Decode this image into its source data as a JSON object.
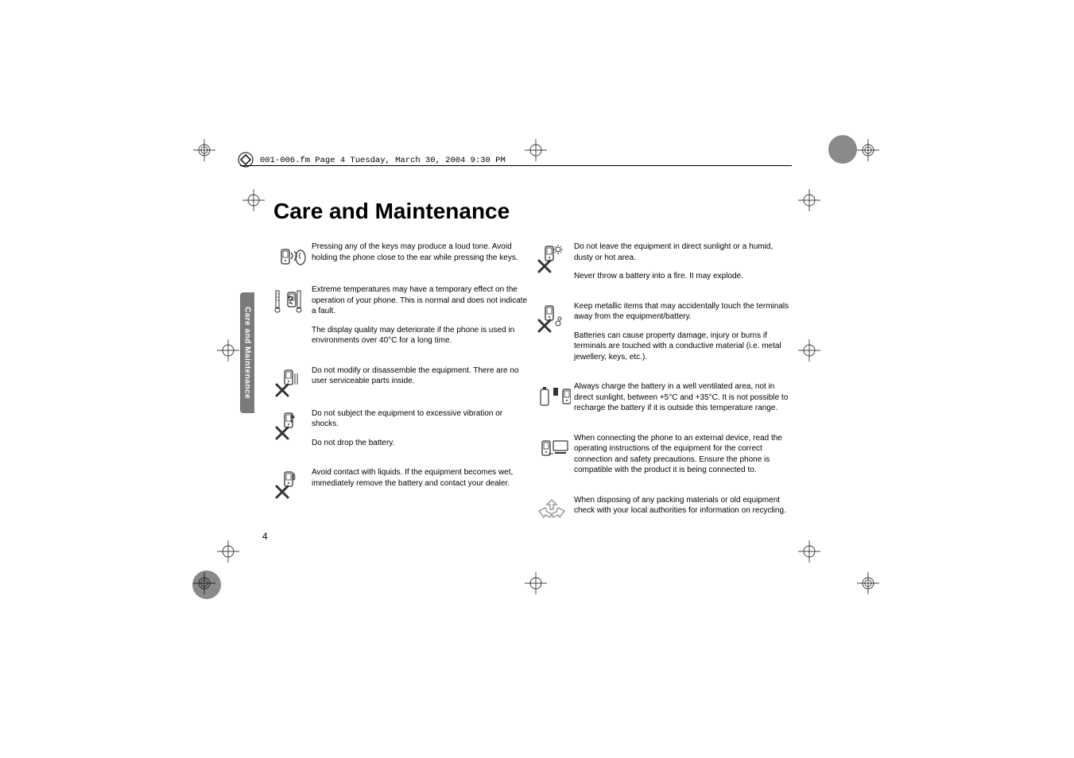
{
  "header": {
    "running_line": "001-006.fm  Page 4  Tuesday, March 30, 2004  9:30 PM"
  },
  "title": "Care and Maintenance",
  "sidebar_tab": "Care and Maintenance",
  "page_number": "4",
  "left_column": [
    {
      "icon": "phone-ear-sound",
      "paragraphs": [
        "Pressing any of the keys may produce a loud tone. Avoid holding the phone close to the ear while pressing the keys."
      ]
    },
    {
      "icon": "thermometer-question",
      "paragraphs": [
        "Extreme temperatures may have a temporary effect on the operation of your phone. This is normal and does not indicate a fault.",
        "The display quality may deteriorate if the phone is used in environments over 40°C for a long time."
      ]
    },
    {
      "icon": "phone-x-disassemble",
      "paragraphs": [
        "Do not modify or disassemble the equipment. There are no user serviceable parts inside."
      ]
    },
    {
      "icon": "phone-x-shock",
      "paragraphs": [
        "Do not subject the equipment to excessive vibration or shocks.",
        "Do not drop the battery."
      ]
    },
    {
      "icon": "phone-x-liquid",
      "paragraphs": [
        "Avoid contact with liquids. If the equipment becomes wet, immediately remove the battery and contact your dealer."
      ]
    }
  ],
  "right_column": [
    {
      "icon": "phone-x-sun",
      "paragraphs": [
        "Do not leave the equipment in direct sunlight or a humid, dusty or hot area.",
        "Never throw a battery into a fire. It may explode."
      ]
    },
    {
      "icon": "phone-x-metal",
      "paragraphs": [
        "Keep metallic items that may accidentally touch the terminals away from the equipment/battery.",
        "Batteries can cause property damage, injury or burns if terminals are touched with a conductive material (i.e. metal jewellery, keys, etc.)."
      ]
    },
    {
      "icon": "battery-charge-vent",
      "paragraphs": [
        "Always charge the battery in a well ventilated area, not in direct sunlight, between +5°C and +35°C. It is not possible to recharge the battery if it is outside this temperature range."
      ]
    },
    {
      "icon": "phone-external-device",
      "paragraphs": [
        "When connecting the phone to an external device, read the operating instructions of the equipment for the correct connection and safety precautions. Ensure the phone is compatible with the product it is being connected to."
      ]
    },
    {
      "icon": "recycle",
      "paragraphs": [
        "When disposing of any packing materials or old equipment check with your local authorities for information on recycling."
      ]
    }
  ],
  "style": {
    "title_fontsize": 28,
    "body_fontsize": 10,
    "tab_bg": "#7a7a7a",
    "tab_fg": "#ffffff",
    "text_color": "#000000",
    "page_bg": "#ffffff",
    "regmark_stroke": "#000000",
    "grey_circle": "#8a8a8a"
  }
}
